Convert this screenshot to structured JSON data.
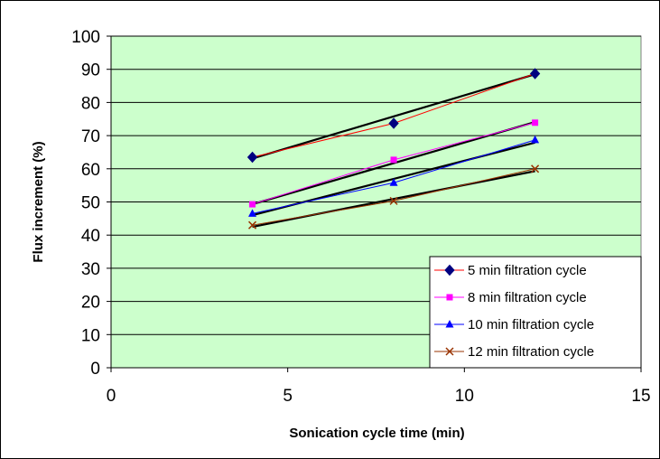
{
  "chart_data": {
    "type": "line",
    "title": "",
    "xlabel": "Sonication cycle time (min)",
    "ylabel": "Flux increment (%)",
    "xlim": [
      0,
      15
    ],
    "ylim": [
      0,
      100
    ],
    "x_ticks": [
      0,
      5,
      10,
      15
    ],
    "y_ticks": [
      0,
      10,
      20,
      30,
      40,
      50,
      60,
      70,
      80,
      90,
      100
    ],
    "grid": "horizontal",
    "legend_position": "bottom-right",
    "plot_background": "#ccffcc",
    "series": [
      {
        "name": "5 min filtration cycle",
        "x": [
          4,
          8,
          12
        ],
        "y": [
          63.5,
          73.7,
          88.7
        ],
        "color": "#ff0000",
        "marker": "diamond",
        "marker_color": "#000080",
        "trend": [
          63.1,
          88.5
        ]
      },
      {
        "name": "8 min filtration cycle",
        "x": [
          4,
          8,
          12
        ],
        "y": [
          49.3,
          62.7,
          73.9
        ],
        "color": "#ff00ff",
        "marker": "square",
        "marker_color": "#ff00ff",
        "trend": [
          49.3,
          74.1
        ]
      },
      {
        "name": "10 min filtration cycle",
        "x": [
          4,
          8,
          12
        ],
        "y": [
          46.5,
          55.8,
          68.7
        ],
        "color": "#0000ff",
        "marker": "triangle",
        "marker_color": "#0000ff",
        "trend": [
          46.0,
          67.9
        ]
      },
      {
        "name": "12 min filtration cycle",
        "x": [
          4,
          8,
          12
        ],
        "y": [
          43.0,
          50.3,
          60.0
        ],
        "color": "#993300",
        "marker": "x",
        "marker_color": "#993300",
        "trend": [
          42.5,
          59.3
        ]
      }
    ]
  }
}
